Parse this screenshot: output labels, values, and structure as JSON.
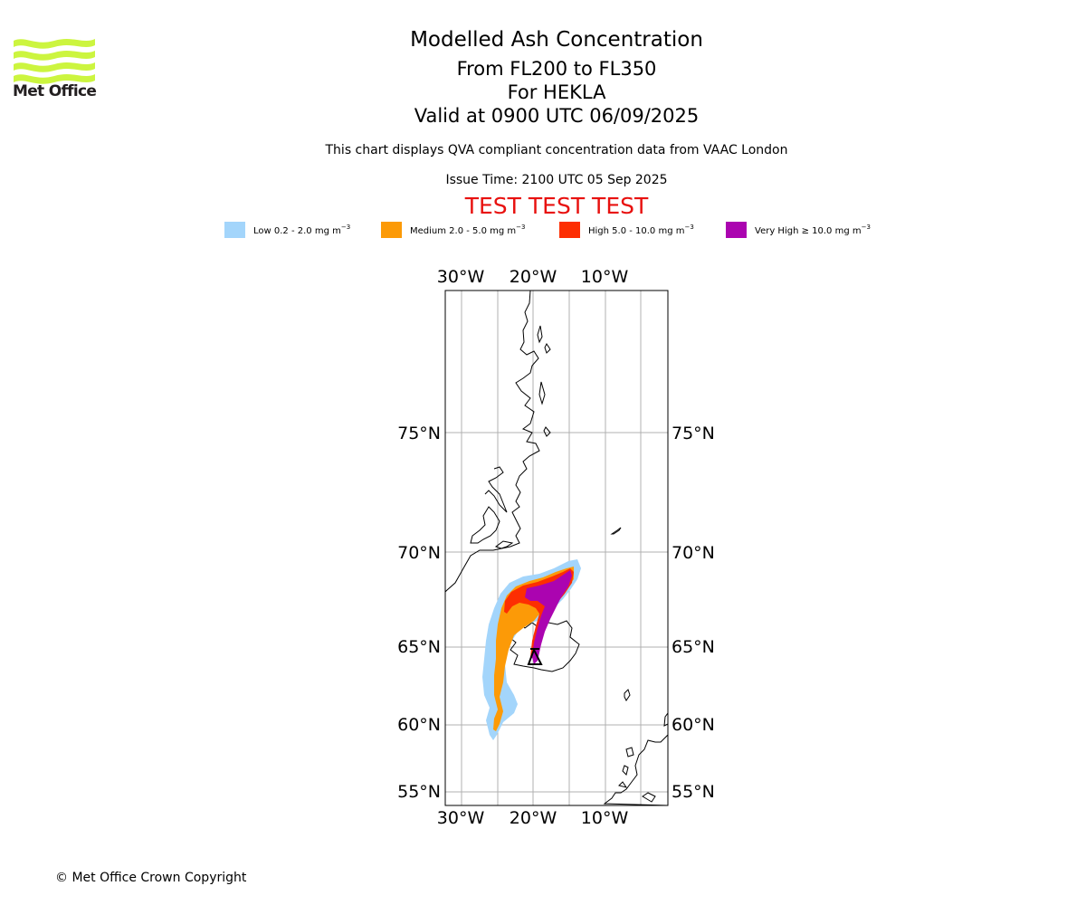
{
  "header": {
    "logo_text": "Met Office",
    "title": "Modelled Ash Concentration",
    "level_range": "From FL200 to FL350",
    "volcano": "For HEKLA",
    "valid_time": "Valid at 0900 UTC 06/09/2025",
    "description": "This chart displays QVA compliant concentration data from VAAC London",
    "issue_time": "Issue Time: 2100 UTC 05 Sep 2025",
    "test_banner": "TEST TEST TEST"
  },
  "legend": [
    {
      "label": "Low 0.2 - 2.0 mg m",
      "color": "#a3d5fb"
    },
    {
      "label": "Medium 2.0 - 5.0 mg m",
      "color": "#fc9a07"
    },
    {
      "label": "High 5.0 - 10.0 mg m",
      "color": "#fd2e02"
    },
    {
      "label": "Very High ≥ 10.0 mg m",
      "color": "#ab04b0"
    }
  ],
  "legend_unit_exponent": "−3",
  "map": {
    "lon_labels": [
      "30°W",
      "20°W",
      "10°W"
    ],
    "lat_labels": [
      "75°N",
      "70°N",
      "65°N",
      "60°N",
      "55°N"
    ],
    "volcano_marker": "volcano-triangle-icon",
    "grid": true
  },
  "footer": {
    "copyright": "© Met Office Crown Copyright"
  }
}
